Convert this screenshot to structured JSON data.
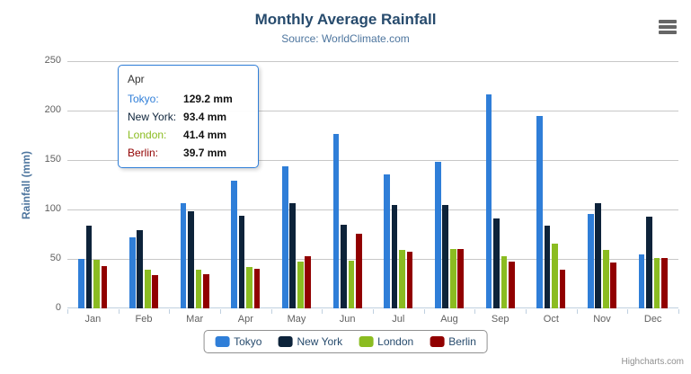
{
  "chart_data": {
    "type": "bar",
    "title": "Monthly Average Rainfall",
    "subtitle": "Source: WorldClimate.com",
    "categories": [
      "Jan",
      "Feb",
      "Mar",
      "Apr",
      "May",
      "Jun",
      "Jul",
      "Aug",
      "Sep",
      "Oct",
      "Nov",
      "Dec"
    ],
    "series": [
      {
        "name": "Tokyo",
        "color": "#2f7ed8",
        "values": [
          49.9,
          71.5,
          106.4,
          129.2,
          144.0,
          176.0,
          135.6,
          148.5,
          216.4,
          194.1,
          95.6,
          54.4
        ]
      },
      {
        "name": "New York",
        "color": "#0d233a",
        "values": [
          83.6,
          78.8,
          98.5,
          93.4,
          106.0,
          84.5,
          105.0,
          104.3,
          91.2,
          83.5,
          106.6,
          92.3
        ]
      },
      {
        "name": "London",
        "color": "#8bbc21",
        "values": [
          48.9,
          38.8,
          39.3,
          41.4,
          47.0,
          48.3,
          59.0,
          59.6,
          52.4,
          65.2,
          59.3,
          51.2
        ]
      },
      {
        "name": "Berlin",
        "color": "#910000",
        "values": [
          42.4,
          33.2,
          34.5,
          39.7,
          52.6,
          75.5,
          57.4,
          60.4,
          47.6,
          39.1,
          46.8,
          51.1
        ]
      }
    ],
    "xlabel": "",
    "ylabel": "Rainfall (mm)",
    "ylim": [
      0,
      250
    ],
    "yticks": [
      0,
      50,
      100,
      150,
      200,
      250
    ],
    "grid": true,
    "legend_position": "bottom"
  },
  "tooltip": {
    "header": "Apr",
    "value_suffix": " mm",
    "rows": [
      {
        "name": "Tokyo",
        "value": "129.2",
        "color": "#2f7ed8"
      },
      {
        "name": "New York",
        "value": "93.4",
        "color": "#0d233a"
      },
      {
        "name": "London",
        "value": "41.4",
        "color": "#8bbc21"
      },
      {
        "name": "Berlin",
        "value": "39.7",
        "color": "#910000"
      }
    ]
  },
  "icons": {
    "menu": "hamburger-menu-icon"
  },
  "credits": {
    "label": "Highcharts.com"
  },
  "colors": {
    "title": "#274b6d",
    "subtitle": "#4d759e",
    "axis_labels": "#606060",
    "grid_line": "#c8c8c8",
    "axis_line": "#c0d0e0",
    "legend_border": "#909090",
    "credits": "#909090",
    "tooltip_border": "#2f7ed8"
  }
}
